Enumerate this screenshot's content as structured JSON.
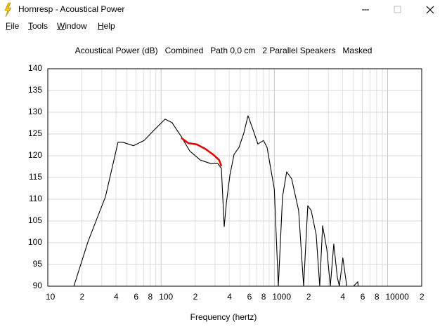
{
  "window": {
    "title": "Hornresp - Acoustical Power",
    "menu": [
      "File",
      "Tools",
      "Window",
      "Help"
    ]
  },
  "chart_data": {
    "type": "line",
    "title": "Acoustical Power (dB)   Combined   Path 0,0 cm   2 Parallel Speakers   Masked",
    "x_label": "Frequency (hertz)",
    "x_log": true,
    "xlim": [
      10,
      20000
    ],
    "xticks": [
      10,
      {
        "value": 20,
        "label": "2"
      },
      {
        "value": 40,
        "label": "4"
      },
      {
        "value": 60,
        "label": "6"
      },
      {
        "value": 80,
        "label": "8"
      },
      100,
      {
        "value": 200,
        "label": "2"
      },
      {
        "value": 400,
        "label": "4"
      },
      {
        "value": 600,
        "label": "6"
      },
      {
        "value": 800,
        "label": "8"
      },
      1000,
      {
        "value": 2000,
        "label": "2"
      },
      {
        "value": 4000,
        "label": "4"
      },
      {
        "value": 6000,
        "label": "6"
      },
      {
        "value": 8000,
        "label": "8"
      },
      10000,
      {
        "value": 20000,
        "label": "2"
      }
    ],
    "minor_xticks": [
      30,
      50,
      70,
      90,
      300,
      500,
      700,
      900,
      3000,
      5000,
      7000,
      9000
    ],
    "ylim": [
      90,
      140
    ],
    "yticks": [
      90,
      95,
      100,
      105,
      110,
      115,
      120,
      125,
      130,
      135,
      140
    ],
    "grid": true,
    "series": [
      {
        "color": "#000000",
        "x": [
          17,
          22.6,
          32.3,
          41.7,
          46,
          57,
          70.8,
          87.7,
          108.6,
          125,
          151,
          179,
          222,
          275,
          317,
          341,
          361,
          377,
          405,
          441,
          487,
          538,
          586,
          648,
          716,
          802,
          863,
          1000,
          1085,
          1181,
          1285,
          1422,
          1640,
          1813,
          1973,
          2115,
          2344,
          2515,
          2667,
          2906,
          3120,
          3350,
          3596,
          3750,
          4027,
          4360,
          5000,
          5450,
          5500
        ],
        "values": [
          90,
          100.2,
          110.6,
          123.1,
          123.1,
          122.3,
          123.5,
          126,
          128.4,
          127.6,
          124.4,
          121.1,
          119,
          118.2,
          118.2,
          117.1,
          103.7,
          109,
          115.5,
          120.3,
          121.9,
          125.2,
          129.2,
          126,
          122.7,
          123.5,
          121.9,
          112.3,
          90,
          110.6,
          116.3,
          114.7,
          107.4,
          90,
          108.5,
          107.4,
          101.8,
          90,
          103.9,
          98.5,
          90,
          99.7,
          92.1,
          90,
          96.5,
          90,
          90,
          91,
          90
        ]
      },
      {
        "color": "#e00000",
        "x": [
          151,
          174,
          207,
          245,
          287,
          326,
          341
        ],
        "values": [
          124.1,
          122.9,
          122.6,
          121.6,
          120.3,
          119,
          117.6
        ]
      }
    ]
  }
}
